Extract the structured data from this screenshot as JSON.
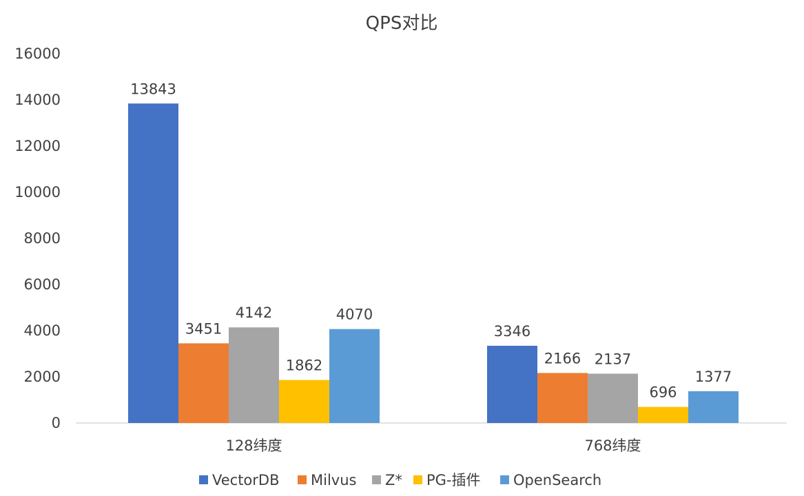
{
  "chart_data": {
    "type": "bar",
    "title": "QPS对比",
    "xlabel": "",
    "ylabel": "",
    "categories": [
      "128纬度",
      "768纬度"
    ],
    "series": [
      {
        "name": "VectorDB",
        "values": [
          13843,
          3346
        ],
        "color": "#4472C4"
      },
      {
        "name": "Milvus",
        "values": [
          3451,
          2166
        ],
        "color": "#ED7D31"
      },
      {
        "name": "Z*",
        "values": [
          4142,
          2137
        ],
        "color": "#A5A5A5"
      },
      {
        "name": "PG-插件",
        "values": [
          1862,
          696
        ],
        "color": "#FFC000"
      },
      {
        "name": "OpenSearch",
        "values": [
          4070,
          1377
        ],
        "color": "#5B9BD5"
      }
    ],
    "ylim": [
      0,
      16000
    ],
    "yticks": [
      "0",
      "2000",
      "4000",
      "6000",
      "8000",
      "10000",
      "12000",
      "14000",
      "16000"
    ],
    "grid": false,
    "data_labels": true,
    "legend_position": "bottom"
  }
}
